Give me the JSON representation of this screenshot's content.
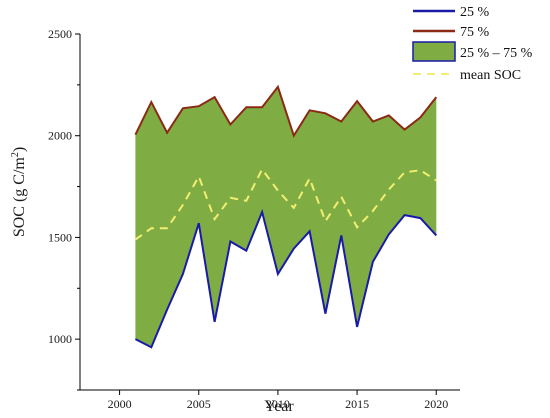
{
  "chart_data": {
    "type": "area",
    "xlabel": "Year",
    "ylabel_main": "SOC (g C/m",
    "ylabel_sup": "2",
    "ylabel_end": ")",
    "xlim": [
      1997.5,
      2021.5
    ],
    "ylim": [
      750,
      2500
    ],
    "xticks": [
      2000,
      2005,
      2010,
      2015,
      2020
    ],
    "yticks": [
      1000,
      1500,
      2000,
      2500
    ],
    "x": [
      2001,
      2002,
      2003,
      2004,
      2005,
      2006,
      2007,
      2008,
      2009,
      2010,
      2011,
      2012,
      2013,
      2014,
      2015,
      2016,
      2017,
      2018,
      2019,
      2020
    ],
    "series": [
      {
        "key": "p25",
        "name": "25 %",
        "color": "#1a1aa8",
        "values": [
          1000,
          960,
          1145,
          1320,
          1570,
          1085,
          1480,
          1435,
          1625,
          1320,
          1445,
          1530,
          1125,
          1510,
          1060,
          1380,
          1515,
          1610,
          1595,
          1510
        ]
      },
      {
        "key": "p75",
        "name": "75 %",
        "color": "#8b2a14",
        "values": [
          2005,
          2165,
          2015,
          2135,
          2145,
          2190,
          2055,
          2140,
          2140,
          2240,
          2000,
          2125,
          2110,
          2070,
          2170,
          2070,
          2100,
          2030,
          2090,
          2190
        ]
      },
      {
        "key": "mean",
        "name": "mean SOC",
        "color": "#f2ee70",
        "values": [
          1490,
          1545,
          1545,
          1660,
          1800,
          1590,
          1695,
          1680,
          1835,
          1730,
          1645,
          1790,
          1580,
          1700,
          1550,
          1630,
          1735,
          1820,
          1830,
          1780
        ]
      }
    ],
    "band": {
      "name": "25 % – 75 %",
      "fill": "#7fad44",
      "edge": "#1a1aa8"
    },
    "legend_placement": "top-right",
    "grid": false
  }
}
